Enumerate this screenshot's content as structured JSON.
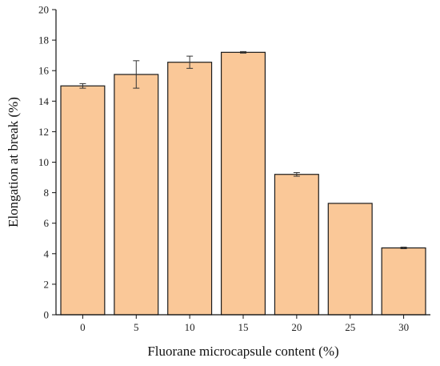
{
  "chart_data": {
    "type": "bar",
    "categories": [
      "0",
      "5",
      "10",
      "15",
      "20",
      "25",
      "30"
    ],
    "values": [
      15.0,
      15.75,
      16.55,
      17.2,
      9.2,
      7.3,
      4.38
    ],
    "errors": [
      0.15,
      0.9,
      0.4,
      0.05,
      0.12,
      0.0,
      0.05
    ],
    "xlabel": "Fluorane microcapsule content (%)",
    "ylabel": "Elongation at break (%)",
    "ylim": [
      0,
      20
    ],
    "yticks": [
      0,
      2,
      4,
      6,
      8,
      10,
      12,
      14,
      16,
      18,
      20
    ],
    "bar_color": "#FAC898",
    "grid": false
  }
}
